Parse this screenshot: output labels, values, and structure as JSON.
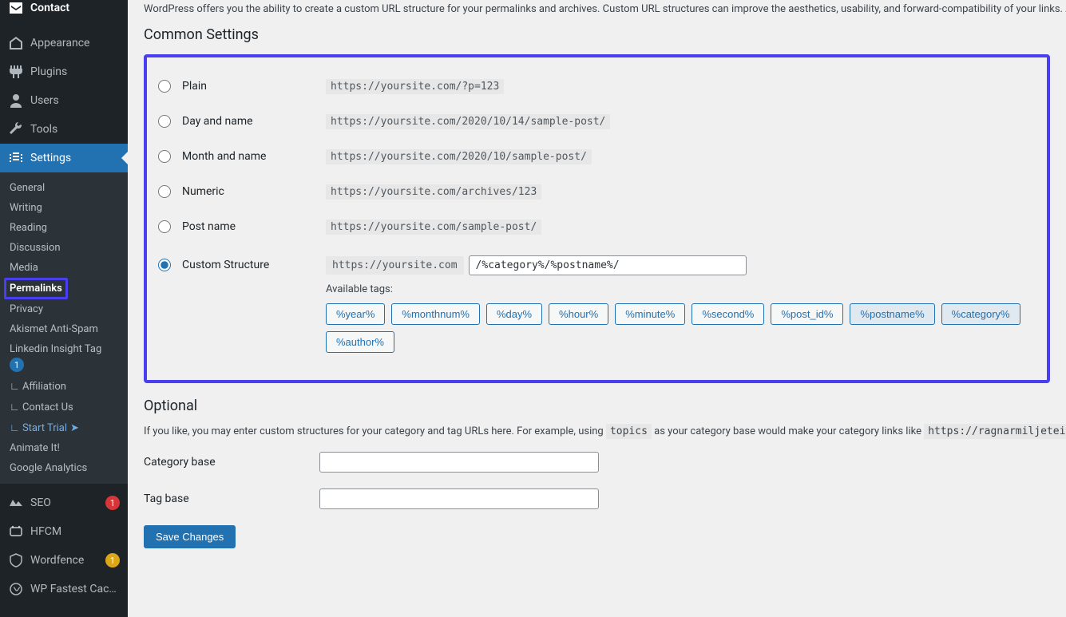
{
  "sidebar": {
    "menu": [
      {
        "label": "Contact",
        "icon": "contact"
      },
      {
        "label": "Appearance",
        "icon": "appearance"
      },
      {
        "label": "Plugins",
        "icon": "plugins"
      },
      {
        "label": "Users",
        "icon": "users"
      },
      {
        "label": "Tools",
        "icon": "tools"
      },
      {
        "label": "Settings",
        "icon": "settings",
        "current": true
      }
    ],
    "settings_sub": [
      {
        "label": "General"
      },
      {
        "label": "Writing"
      },
      {
        "label": "Reading"
      },
      {
        "label": "Discussion"
      },
      {
        "label": "Media"
      },
      {
        "label": "Permalinks",
        "highlighted": true
      },
      {
        "label": "Privacy"
      },
      {
        "label": "Akismet Anti-Spam"
      },
      {
        "label": "Linkedin Insight Tag",
        "badge": "1"
      },
      {
        "label": "Affiliation",
        "angle": true
      },
      {
        "label": "Contact Us",
        "angle": true
      },
      {
        "label": "Start Trial",
        "angle": true,
        "blue": true,
        "send": true
      },
      {
        "label": "Animate It!"
      },
      {
        "label": "Google Analytics"
      }
    ],
    "bottom": [
      {
        "label": "SEO",
        "icon": "seo",
        "count": "1",
        "count_color": "red"
      },
      {
        "label": "HFCM",
        "icon": "hfcm"
      },
      {
        "label": "Wordfence",
        "icon": "wordfence",
        "count": "1",
        "count_color": "yellow"
      },
      {
        "label": "WP Fastest Cache",
        "icon": "wpfc"
      }
    ]
  },
  "page": {
    "intro": "WordPress offers you the ability to create a custom URL structure for your permalinks and archives. Custom URL structures can improve the aesthetics, usability, and forward-compatibility of your links. A",
    "common_title": "Common Settings",
    "options": [
      {
        "label": "Plain",
        "sample": "https://yoursite.com/?p=123"
      },
      {
        "label": "Day and name",
        "sample": "https://yoursite.com/2020/10/14/sample-post/"
      },
      {
        "label": "Month and name",
        "sample": "https://yoursite.com/2020/10/sample-post/"
      },
      {
        "label": "Numeric",
        "sample": "https://yoursite.com/archives/123"
      },
      {
        "label": "Post name",
        "sample": "https://yoursite.com/sample-post/"
      }
    ],
    "custom": {
      "label": "Custom Structure",
      "prefix": "https://yoursite.com",
      "value": "/%category%/%postname%/",
      "available_label": "Available tags:",
      "tags": [
        "%year%",
        "%monthnum%",
        "%day%",
        "%hour%",
        "%minute%",
        "%second%",
        "%post_id%",
        "%postname%",
        "%category%",
        "%author%"
      ],
      "active_tags": [
        "%postname%",
        "%category%"
      ]
    },
    "optional": {
      "title": "Optional",
      "desc_before": "If you like, you may enter custom structures for your category and tag URLs here. For example, using ",
      "desc_code1": "topics",
      "desc_mid": " as your category base would make your category links like ",
      "desc_code2": "https://ragnarmiljeteig.",
      "category_label": "Category base",
      "tag_label": "Tag base"
    },
    "save_label": "Save Changes"
  },
  "colors": {
    "highlight_border": "#4a3ff0",
    "wp_blue": "#2271b1",
    "sidebar_bg": "#1d2327"
  }
}
